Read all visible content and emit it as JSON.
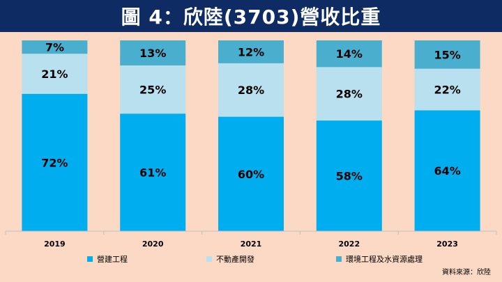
{
  "header": {
    "title": "圖 4：欣陸(3703)營收比重"
  },
  "source": "資料來源：欣陸",
  "chart_data": {
    "type": "bar",
    "stacked": true,
    "categories": [
      "2019",
      "2020",
      "2021",
      "2022",
      "2023"
    ],
    "series": [
      {
        "name": "營建工程",
        "values": [
          72,
          61,
          60,
          58,
          64
        ],
        "color": "#00adef"
      },
      {
        "name": "不動產開發",
        "values": [
          21,
          25,
          28,
          28,
          22
        ],
        "color": "#b9e0ee"
      },
      {
        "name": "環境工程及水資源處理",
        "values": [
          7,
          13,
          12,
          14,
          15
        ],
        "color": "#4aaecf"
      }
    ],
    "value_suffix": "%",
    "legend_position": "bottom",
    "grid": false
  }
}
